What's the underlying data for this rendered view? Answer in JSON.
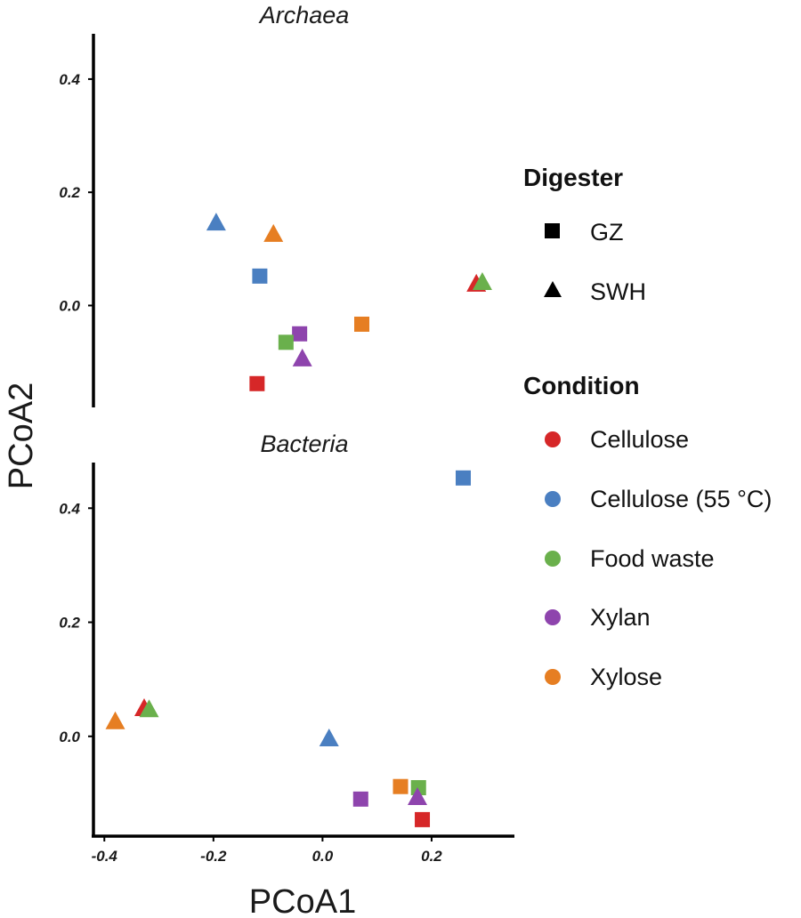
{
  "chart_data": {
    "type": "scatter",
    "xlabel": "PCoA1",
    "ylabel": "PCoA2",
    "xlim": [
      -0.42,
      0.36
    ],
    "x_ticks": [
      -0.4,
      -0.2,
      0.0,
      0.2
    ],
    "x_tick_labels": [
      "-0.4",
      "-0.2",
      "0.0",
      "0.2"
    ],
    "colors": {
      "Cellulose": "#d62728",
      "Cellulose (55 °C)": "#4a7fc1",
      "Food waste": "#6ab04c",
      "Xylan": "#8e44ad",
      "Xylose": "#e67e22"
    },
    "panels": [
      {
        "title": "Archaea",
        "ylim": [
          -0.18,
          0.48
        ],
        "y_ticks": [
          0.0,
          0.2,
          0.4
        ],
        "y_tick_labels": [
          "0.0",
          "0.2",
          "0.4"
        ],
        "points": [
          {
            "x": -0.195,
            "y": 0.145,
            "digester": "SWH",
            "condition": "Cellulose (55 °C)"
          },
          {
            "x": -0.09,
            "y": 0.125,
            "digester": "SWH",
            "condition": "Xylose"
          },
          {
            "x": -0.115,
            "y": 0.052,
            "digester": "GZ",
            "condition": "Cellulose (55 °C)"
          },
          {
            "x": 0.282,
            "y": 0.037,
            "digester": "SWH",
            "condition": "Cellulose"
          },
          {
            "x": 0.293,
            "y": 0.04,
            "digester": "SWH",
            "condition": "Food waste"
          },
          {
            "x": 0.072,
            "y": -0.033,
            "digester": "GZ",
            "condition": "Xylose"
          },
          {
            "x": -0.042,
            "y": -0.05,
            "digester": "GZ",
            "condition": "Xylan"
          },
          {
            "x": -0.067,
            "y": -0.065,
            "digester": "GZ",
            "condition": "Food waste"
          },
          {
            "x": -0.037,
            "y": -0.095,
            "digester": "SWH",
            "condition": "Xylan"
          },
          {
            "x": -0.12,
            "y": -0.138,
            "digester": "GZ",
            "condition": "Cellulose"
          }
        ]
      },
      {
        "title": "Bacteria",
        "ylim": [
          -0.175,
          0.48
        ],
        "y_ticks": [
          0.0,
          0.2,
          0.4
        ],
        "y_tick_labels": [
          "0.0",
          "0.2",
          "0.4"
        ],
        "points": [
          {
            "x": 0.258,
            "y": 0.453,
            "digester": "GZ",
            "condition": "Cellulose (55 °C)"
          },
          {
            "x": -0.38,
            "y": 0.025,
            "digester": "SWH",
            "condition": "Xylose"
          },
          {
            "x": -0.327,
            "y": 0.048,
            "digester": "SWH",
            "condition": "Cellulose"
          },
          {
            "x": -0.318,
            "y": 0.046,
            "digester": "SWH",
            "condition": "Food waste"
          },
          {
            "x": 0.012,
            "y": -0.005,
            "digester": "SWH",
            "condition": "Cellulose (55 °C)"
          },
          {
            "x": 0.143,
            "y": -0.088,
            "digester": "GZ",
            "condition": "Xylose"
          },
          {
            "x": 0.176,
            "y": -0.09,
            "digester": "GZ",
            "condition": "Food waste"
          },
          {
            "x": 0.07,
            "y": -0.11,
            "digester": "GZ",
            "condition": "Xylan"
          },
          {
            "x": 0.174,
            "y": -0.108,
            "digester": "SWH",
            "condition": "Xylan"
          },
          {
            "x": 0.183,
            "y": -0.146,
            "digester": "GZ",
            "condition": "Cellulose"
          }
        ]
      }
    ],
    "legend": {
      "digester_title": "Digester",
      "digester": [
        {
          "label": "GZ",
          "shape": "square"
        },
        {
          "label": "SWH",
          "shape": "triangle"
        }
      ],
      "condition_title": "Condition",
      "condition": [
        {
          "label": "Cellulose",
          "color": "#d62728"
        },
        {
          "label": "Cellulose (55 °C)",
          "color": "#4a7fc1"
        },
        {
          "label": "Food waste",
          "color": "#6ab04c"
        },
        {
          "label": "Xylan",
          "color": "#8e44ad"
        },
        {
          "label": "Xylose",
          "color": "#e67e22"
        }
      ]
    }
  }
}
